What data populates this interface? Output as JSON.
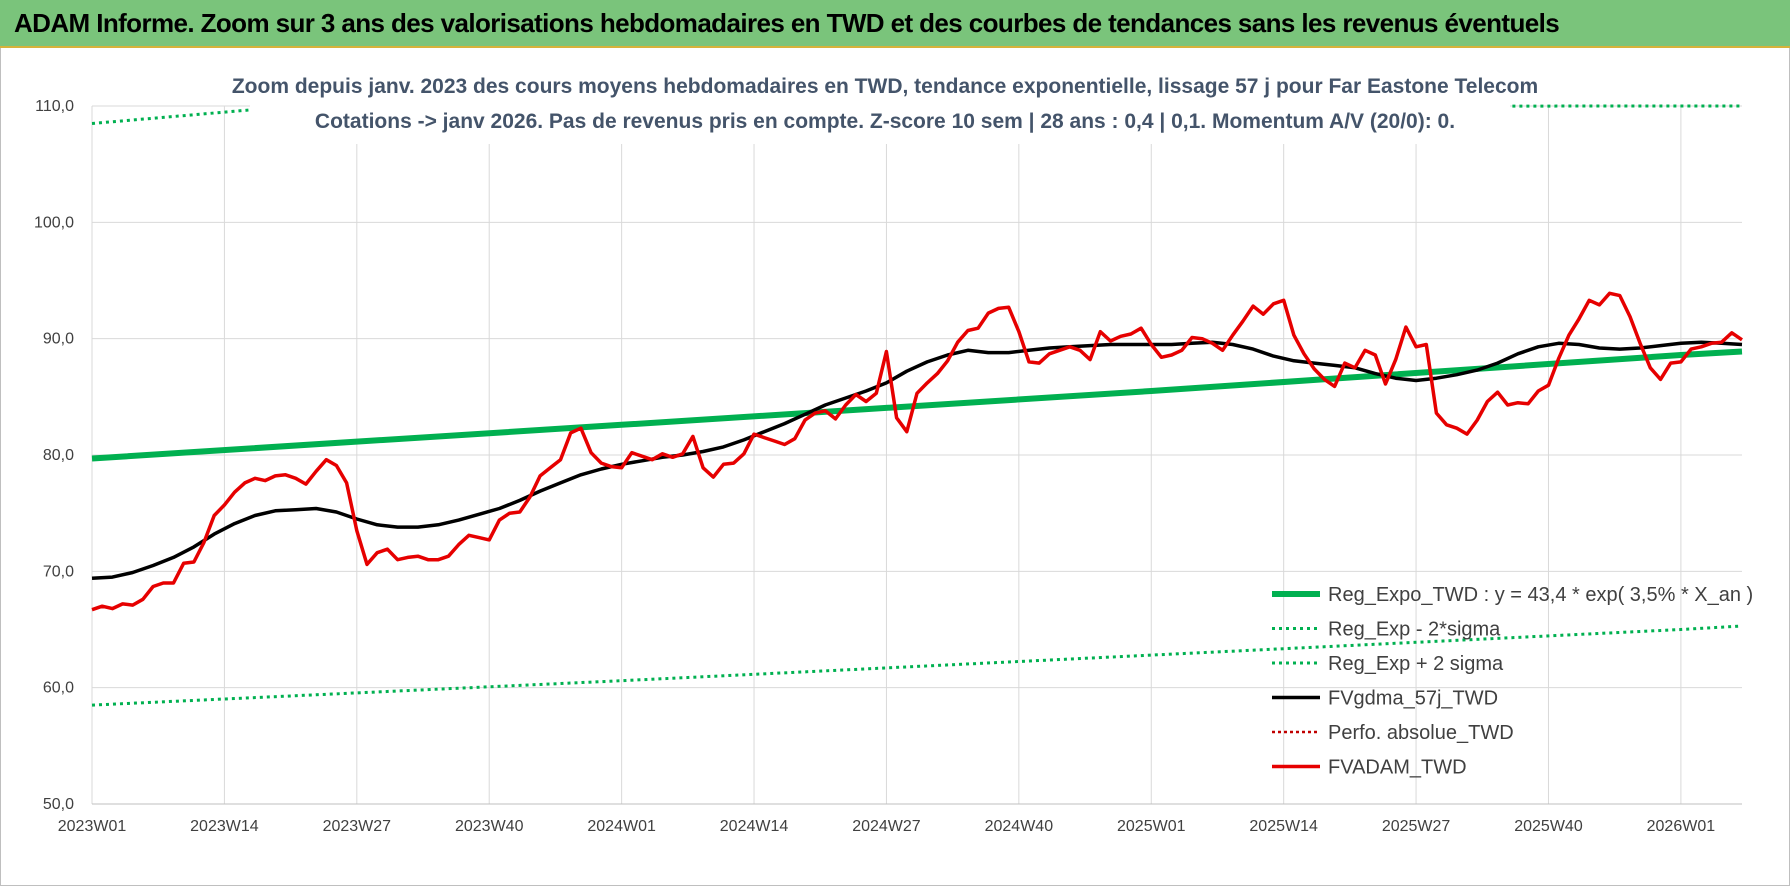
{
  "header": {
    "title": "ADAM Informe. Zoom sur 3 ans des valorisations hebdomadaires en TWD et des courbes de tendances sans les revenus éventuels"
  },
  "chart_data": {
    "type": "line",
    "subtitle_line1": "Zoom depuis janv. 2023 des cours moyens hebdomadaires en TWD, tendance exponentielle, lissage 57 j pour Far Eastone Telecom",
    "subtitle_line2": "Cotations -> janv 2026. Pas de revenus pris en compte. Z-score 10 sem | 28 ans : 0,4 | 0,1. Momentum A/V (20/0): 0.",
    "ylim": [
      50,
      110
    ],
    "yticks": [
      "50,0",
      "60,0",
      "70,0",
      "80,0",
      "90,0",
      "100,0",
      "110,0"
    ],
    "xticks": [
      "2023W01",
      "2023W14",
      "2023W27",
      "2023W40",
      "2024W01",
      "2024W14",
      "2024W27",
      "2024W40",
      "2025W01",
      "2025W14",
      "2025W27",
      "2025W40",
      "2026W01"
    ],
    "x_range_weeks": [
      0,
      162
    ],
    "grid": true,
    "legend_position": "bottom-right",
    "colors": {
      "reg_expo": "#00b050",
      "sigma": "#00b050",
      "smooth": "#000000",
      "perfo": "#c00000",
      "adam": "#e60000"
    },
    "legend": [
      "Reg_Expo_TWD : y = 43,4 * exp( 3,5% *  X_an )",
      "Reg_Exp - 2*sigma",
      "Reg_Exp + 2 sigma",
      "FVgdma_57j_TWD",
      "Perfo. absolue_TWD",
      "FVADAM_TWD"
    ],
    "series": [
      {
        "name": "Reg_Expo_TWD : y = 43,4 * exp( 3,5% *  X_an )",
        "points": [
          [
            0,
            79.7
          ],
          [
            52,
            82.6
          ],
          [
            104,
            85.5
          ],
          [
            156,
            88.6
          ],
          [
            162,
            88.9
          ]
        ]
      },
      {
        "name": "Reg_Exp - 2*sigma",
        "points": [
          [
            0,
            58.5
          ],
          [
            52,
            60.6
          ],
          [
            104,
            62.8
          ],
          [
            156,
            65.0
          ],
          [
            162,
            65.3
          ]
        ]
      },
      {
        "name": "Reg_Exp + 2 sigma",
        "points": [
          [
            0,
            108.5
          ],
          [
            16,
            109.7
          ],
          [
            146,
            110.0
          ],
          [
            162,
            110.0
          ]
        ]
      },
      {
        "name": "FVgdma_57j_TWD",
        "points": [
          [
            0,
            69.4
          ],
          [
            2,
            69.5
          ],
          [
            4,
            69.9
          ],
          [
            6,
            70.5
          ],
          [
            8,
            71.2
          ],
          [
            10,
            72.1
          ],
          [
            12,
            73.2
          ],
          [
            14,
            74.1
          ],
          [
            16,
            74.8
          ],
          [
            18,
            75.2
          ],
          [
            20,
            75.3
          ],
          [
            22,
            75.4
          ],
          [
            24,
            75.1
          ],
          [
            26,
            74.5
          ],
          [
            28,
            74.0
          ],
          [
            30,
            73.8
          ],
          [
            32,
            73.8
          ],
          [
            34,
            74.0
          ],
          [
            36,
            74.4
          ],
          [
            38,
            74.9
          ],
          [
            40,
            75.4
          ],
          [
            42,
            76.1
          ],
          [
            44,
            76.9
          ],
          [
            46,
            77.6
          ],
          [
            48,
            78.3
          ],
          [
            50,
            78.8
          ],
          [
            52,
            79.2
          ],
          [
            54,
            79.5
          ],
          [
            56,
            79.8
          ],
          [
            58,
            80.0
          ],
          [
            60,
            80.3
          ],
          [
            62,
            80.7
          ],
          [
            64,
            81.3
          ],
          [
            66,
            82.0
          ],
          [
            68,
            82.7
          ],
          [
            70,
            83.5
          ],
          [
            72,
            84.3
          ],
          [
            74,
            84.9
          ],
          [
            76,
            85.5
          ],
          [
            78,
            86.2
          ],
          [
            80,
            87.2
          ],
          [
            82,
            88.0
          ],
          [
            84,
            88.6
          ],
          [
            86,
            89.0
          ],
          [
            88,
            88.8
          ],
          [
            90,
            88.8
          ],
          [
            92,
            89.0
          ],
          [
            94,
            89.2
          ],
          [
            96,
            89.3
          ],
          [
            98,
            89.4
          ],
          [
            100,
            89.5
          ],
          [
            102,
            89.5
          ],
          [
            104,
            89.5
          ],
          [
            106,
            89.5
          ],
          [
            108,
            89.6
          ],
          [
            110,
            89.7
          ],
          [
            112,
            89.5
          ],
          [
            114,
            89.1
          ],
          [
            116,
            88.5
          ],
          [
            118,
            88.1
          ],
          [
            120,
            87.9
          ],
          [
            122,
            87.7
          ],
          [
            124,
            87.5
          ],
          [
            126,
            87.0
          ],
          [
            128,
            86.6
          ],
          [
            130,
            86.4
          ],
          [
            132,
            86.6
          ],
          [
            134,
            86.9
          ],
          [
            136,
            87.3
          ],
          [
            138,
            87.9
          ],
          [
            140,
            88.7
          ],
          [
            142,
            89.3
          ],
          [
            144,
            89.6
          ],
          [
            146,
            89.5
          ],
          [
            148,
            89.2
          ],
          [
            150,
            89.1
          ],
          [
            152,
            89.2
          ],
          [
            154,
            89.4
          ],
          [
            156,
            89.6
          ],
          [
            158,
            89.7
          ],
          [
            160,
            89.6
          ],
          [
            162,
            89.5
          ]
        ]
      },
      {
        "name": "Perfo. absolue_TWD",
        "points": []
      },
      {
        "name": "FVADAM_TWD",
        "points": [
          [
            0,
            66.7
          ],
          [
            1,
            67.0
          ],
          [
            2,
            66.8
          ],
          [
            3,
            67.2
          ],
          [
            4,
            67.1
          ],
          [
            5,
            67.6
          ],
          [
            6,
            68.7
          ],
          [
            7,
            69.0
          ],
          [
            8,
            69.0
          ],
          [
            9,
            70.7
          ],
          [
            10,
            70.8
          ],
          [
            11,
            72.5
          ],
          [
            12,
            74.8
          ],
          [
            13,
            75.7
          ],
          [
            14,
            76.8
          ],
          [
            15,
            77.6
          ],
          [
            16,
            78.0
          ],
          [
            17,
            77.8
          ],
          [
            18,
            78.2
          ],
          [
            19,
            78.3
          ],
          [
            20,
            78.0
          ],
          [
            21,
            77.5
          ],
          [
            22,
            78.6
          ],
          [
            23,
            79.6
          ],
          [
            24,
            79.1
          ],
          [
            25,
            77.6
          ],
          [
            26,
            73.5
          ],
          [
            27,
            70.6
          ],
          [
            28,
            71.6
          ],
          [
            29,
            71.9
          ],
          [
            30,
            71.0
          ],
          [
            31,
            71.2
          ],
          [
            32,
            71.3
          ],
          [
            33,
            71.0
          ],
          [
            34,
            71.0
          ],
          [
            35,
            71.3
          ],
          [
            36,
            72.3
          ],
          [
            37,
            73.1
          ],
          [
            38,
            72.9
          ],
          [
            39,
            72.7
          ],
          [
            40,
            74.4
          ],
          [
            41,
            75.0
          ],
          [
            42,
            75.1
          ],
          [
            43,
            76.4
          ],
          [
            44,
            78.2
          ],
          [
            45,
            78.9
          ],
          [
            46,
            79.6
          ],
          [
            47,
            81.9
          ],
          [
            48,
            82.3
          ],
          [
            49,
            80.2
          ],
          [
            50,
            79.3
          ],
          [
            51,
            79.0
          ],
          [
            52,
            78.9
          ],
          [
            53,
            80.2
          ],
          [
            54,
            79.9
          ],
          [
            55,
            79.6
          ],
          [
            56,
            80.1
          ],
          [
            57,
            79.8
          ],
          [
            58,
            80.1
          ],
          [
            59,
            81.6
          ],
          [
            60,
            78.9
          ],
          [
            61,
            78.1
          ],
          [
            62,
            79.2
          ],
          [
            63,
            79.3
          ],
          [
            64,
            80.1
          ],
          [
            65,
            81.8
          ],
          [
            66,
            81.5
          ],
          [
            67,
            81.2
          ],
          [
            68,
            80.9
          ],
          [
            69,
            81.4
          ],
          [
            70,
            83.0
          ],
          [
            71,
            83.6
          ],
          [
            72,
            83.8
          ],
          [
            73,
            83.1
          ],
          [
            74,
            84.3
          ],
          [
            75,
            85.2
          ],
          [
            76,
            84.6
          ],
          [
            77,
            85.3
          ],
          [
            78,
            88.9
          ],
          [
            79,
            83.2
          ],
          [
            80,
            82.0
          ],
          [
            81,
            85.3
          ],
          [
            82,
            86.2
          ],
          [
            83,
            87.0
          ],
          [
            84,
            88.1
          ],
          [
            85,
            89.7
          ],
          [
            86,
            90.7
          ],
          [
            87,
            90.9
          ],
          [
            88,
            92.2
          ],
          [
            89,
            92.6
          ],
          [
            90,
            92.7
          ],
          [
            91,
            90.6
          ],
          [
            92,
            88.0
          ],
          [
            93,
            87.9
          ],
          [
            94,
            88.7
          ],
          [
            95,
            89.0
          ],
          [
            96,
            89.3
          ],
          [
            97,
            89.0
          ],
          [
            98,
            88.2
          ],
          [
            99,
            90.6
          ],
          [
            100,
            89.8
          ],
          [
            101,
            90.2
          ],
          [
            102,
            90.4
          ],
          [
            103,
            90.9
          ],
          [
            104,
            89.5
          ],
          [
            105,
            88.4
          ],
          [
            106,
            88.6
          ],
          [
            107,
            89.0
          ],
          [
            108,
            90.1
          ],
          [
            109,
            90.0
          ],
          [
            110,
            89.6
          ],
          [
            111,
            89.0
          ],
          [
            112,
            90.3
          ],
          [
            113,
            91.5
          ],
          [
            114,
            92.8
          ],
          [
            115,
            92.1
          ],
          [
            116,
            93.0
          ],
          [
            117,
            93.3
          ],
          [
            118,
            90.3
          ],
          [
            119,
            88.7
          ],
          [
            120,
            87.4
          ],
          [
            121,
            86.5
          ],
          [
            122,
            85.9
          ],
          [
            123,
            87.9
          ],
          [
            124,
            87.5
          ],
          [
            125,
            89.0
          ],
          [
            126,
            88.6
          ],
          [
            127,
            86.1
          ],
          [
            128,
            88.2
          ],
          [
            129,
            91.0
          ],
          [
            130,
            89.3
          ],
          [
            131,
            89.5
          ],
          [
            132,
            83.6
          ],
          [
            133,
            82.6
          ],
          [
            134,
            82.3
          ],
          [
            135,
            81.8
          ],
          [
            136,
            83.0
          ],
          [
            137,
            84.6
          ],
          [
            138,
            85.4
          ],
          [
            139,
            84.3
          ],
          [
            140,
            84.5
          ],
          [
            141,
            84.4
          ],
          [
            142,
            85.5
          ],
          [
            143,
            86.0
          ],
          [
            144,
            88.3
          ],
          [
            145,
            90.3
          ],
          [
            146,
            91.7
          ],
          [
            147,
            93.3
          ],
          [
            148,
            92.9
          ],
          [
            149,
            93.9
          ],
          [
            150,
            93.7
          ],
          [
            151,
            91.9
          ],
          [
            152,
            89.6
          ],
          [
            153,
            87.5
          ],
          [
            154,
            86.5
          ],
          [
            155,
            87.9
          ],
          [
            156,
            88.0
          ],
          [
            157,
            89.1
          ],
          [
            158,
            89.3
          ],
          [
            159,
            89.6
          ],
          [
            160,
            89.7
          ],
          [
            161,
            90.5
          ],
          [
            162,
            89.9
          ]
        ]
      }
    ]
  }
}
